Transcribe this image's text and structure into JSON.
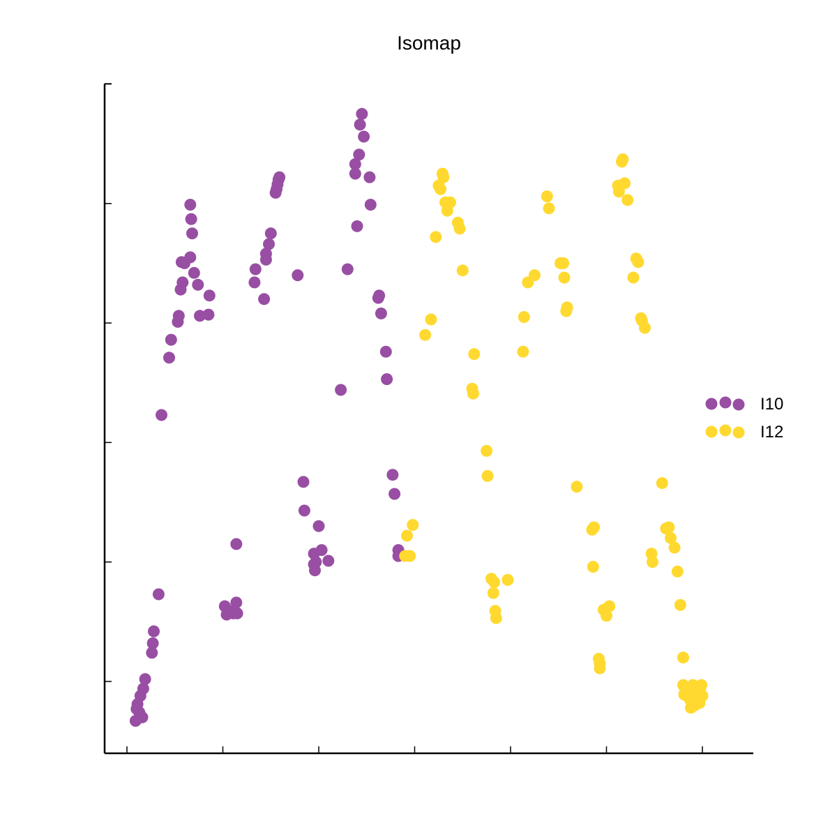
{
  "chart_data": {
    "type": "scatter",
    "title": "Isomap",
    "xlabel": "",
    "ylabel": "",
    "xlim": [
      -0.25,
      6.5
    ],
    "ylim": [
      -0.6,
      5.0
    ],
    "x_ticks": [
      0,
      1,
      2,
      3,
      4,
      5,
      6
    ],
    "y_ticks": [
      0,
      1,
      2,
      3,
      4,
      5
    ],
    "tick_labels_shown": false,
    "grid": false,
    "legend_position": "right",
    "series": [
      {
        "name": "I10",
        "color": "#984ea3",
        "points": [
          [
            0.11,
            -0.19
          ],
          [
            0.09,
            -0.33
          ],
          [
            0.13,
            -0.26
          ],
          [
            0.16,
            -0.3
          ],
          [
            0.1,
            -0.23
          ],
          [
            0.14,
            -0.12
          ],
          [
            0.17,
            -0.06
          ],
          [
            0.19,
            0.02
          ],
          [
            0.26,
            0.24
          ],
          [
            0.27,
            0.32
          ],
          [
            0.28,
            0.42
          ],
          [
            0.33,
            0.73
          ],
          [
            0.36,
            2.23
          ],
          [
            0.44,
            2.71
          ],
          [
            0.46,
            2.86
          ],
          [
            0.53,
            3.01
          ],
          [
            0.54,
            3.06
          ],
          [
            0.57,
            3.51
          ],
          [
            0.56,
            3.28
          ],
          [
            0.58,
            3.34
          ],
          [
            0.6,
            3.5
          ],
          [
            0.66,
            3.55
          ],
          [
            0.66,
            3.99
          ],
          [
            0.67,
            3.87
          ],
          [
            0.68,
            3.75
          ],
          [
            0.7,
            3.42
          ],
          [
            0.74,
            3.32
          ],
          [
            0.76,
            3.06
          ],
          [
            0.85,
            3.07
          ],
          [
            0.86,
            3.23
          ],
          [
            1.02,
            0.63
          ],
          [
            1.04,
            0.56
          ],
          [
            1.06,
            0.59
          ],
          [
            1.11,
            0.57
          ],
          [
            1.14,
            0.66
          ],
          [
            1.15,
            0.57
          ],
          [
            1.14,
            1.15
          ],
          [
            1.33,
            3.34
          ],
          [
            1.34,
            3.45
          ],
          [
            1.43,
            3.2
          ],
          [
            1.45,
            3.53
          ],
          [
            1.45,
            3.58
          ],
          [
            1.48,
            3.66
          ],
          [
            1.5,
            3.75
          ],
          [
            1.55,
            4.09
          ],
          [
            1.56,
            4.12
          ],
          [
            1.57,
            4.16
          ],
          [
            1.58,
            4.2
          ],
          [
            1.59,
            4.22
          ],
          [
            1.78,
            3.4
          ],
          [
            1.84,
            1.67
          ],
          [
            1.85,
            1.43
          ],
          [
            1.95,
            1.07
          ],
          [
            1.95,
            0.98
          ],
          [
            1.96,
            0.93
          ],
          [
            1.97,
            1.0
          ],
          [
            2.0,
            1.3
          ],
          [
            2.03,
            1.1
          ],
          [
            2.1,
            1.01
          ],
          [
            2.23,
            2.44
          ],
          [
            2.3,
            3.45
          ],
          [
            2.38,
            4.33
          ],
          [
            2.38,
            4.25
          ],
          [
            2.4,
            3.81
          ],
          [
            2.42,
            4.41
          ],
          [
            2.43,
            4.66
          ],
          [
            2.45,
            4.75
          ],
          [
            2.47,
            4.56
          ],
          [
            2.53,
            4.22
          ],
          [
            2.54,
            3.99
          ],
          [
            2.62,
            3.21
          ],
          [
            2.63,
            3.23
          ],
          [
            2.65,
            3.08
          ],
          [
            2.7,
            2.76
          ],
          [
            2.71,
            2.53
          ],
          [
            2.77,
            1.73
          ],
          [
            2.79,
            1.57
          ],
          [
            2.83,
            1.05
          ],
          [
            2.83,
            1.1
          ]
        ]
      },
      {
        "name": "I12",
        "color": "#ffd92f",
        "points": [
          [
            2.9,
            1.05
          ],
          [
            2.92,
            1.22
          ],
          [
            2.95,
            1.05
          ],
          [
            2.98,
            1.31
          ],
          [
            3.11,
            2.9
          ],
          [
            3.17,
            3.03
          ],
          [
            3.22,
            3.72
          ],
          [
            3.25,
            4.15
          ],
          [
            3.27,
            4.12
          ],
          [
            3.29,
            4.25
          ],
          [
            3.3,
            4.22
          ],
          [
            3.32,
            4.01
          ],
          [
            3.34,
            3.94
          ],
          [
            3.37,
            4.01
          ],
          [
            3.45,
            3.84
          ],
          [
            3.47,
            3.79
          ],
          [
            3.5,
            3.44
          ],
          [
            3.6,
            2.45
          ],
          [
            3.61,
            2.41
          ],
          [
            3.62,
            2.74
          ],
          [
            3.75,
            1.93
          ],
          [
            3.76,
            1.72
          ],
          [
            3.8,
            0.86
          ],
          [
            3.82,
            0.74
          ],
          [
            3.83,
            0.83
          ],
          [
            3.84,
            0.59
          ],
          [
            3.85,
            0.53
          ],
          [
            3.97,
            0.85
          ],
          [
            4.13,
            2.76
          ],
          [
            4.14,
            3.05
          ],
          [
            4.18,
            3.34
          ],
          [
            4.25,
            3.4
          ],
          [
            4.38,
            4.06
          ],
          [
            4.4,
            3.96
          ],
          [
            4.52,
            3.5
          ],
          [
            4.55,
            3.5
          ],
          [
            4.56,
            3.38
          ],
          [
            4.58,
            3.1
          ],
          [
            4.59,
            3.13
          ],
          [
            4.69,
            1.63
          ],
          [
            4.85,
            1.27
          ],
          [
            4.87,
            1.29
          ],
          [
            4.86,
            0.96
          ],
          [
            4.92,
            0.19
          ],
          [
            4.93,
            0.11
          ],
          [
            4.93,
            0.15
          ],
          [
            4.97,
            0.6
          ],
          [
            5.0,
            0.55
          ],
          [
            5.03,
            0.63
          ],
          [
            5.12,
            4.15
          ],
          [
            5.13,
            4.1
          ],
          [
            5.16,
            4.35
          ],
          [
            5.17,
            4.37
          ],
          [
            5.19,
            4.17
          ],
          [
            5.22,
            4.03
          ],
          [
            5.28,
            3.38
          ],
          [
            5.31,
            3.54
          ],
          [
            5.33,
            3.51
          ],
          [
            5.36,
            3.04
          ],
          [
            5.37,
            3.02
          ],
          [
            5.4,
            2.96
          ],
          [
            5.47,
            1.07
          ],
          [
            5.48,
            1.0
          ],
          [
            5.58,
            1.66
          ],
          [
            5.62,
            1.28
          ],
          [
            5.65,
            1.29
          ],
          [
            5.67,
            1.2
          ],
          [
            5.71,
            1.12
          ],
          [
            5.74,
            0.92
          ],
          [
            5.77,
            0.64
          ],
          [
            5.8,
            0.2
          ],
          [
            5.8,
            -0.03
          ],
          [
            5.81,
            -0.11
          ],
          [
            5.82,
            -0.08
          ],
          [
            5.84,
            -0.12
          ],
          [
            5.86,
            -0.07
          ],
          [
            5.87,
            -0.15
          ],
          [
            5.88,
            -0.22
          ],
          [
            5.9,
            -0.03
          ],
          [
            5.91,
            -0.1
          ],
          [
            5.92,
            -0.2
          ],
          [
            5.93,
            -0.05
          ],
          [
            5.94,
            -0.07
          ],
          [
            5.96,
            -0.09
          ],
          [
            5.97,
            -0.18
          ],
          [
            5.98,
            -0.05
          ],
          [
            5.99,
            -0.03
          ],
          [
            6.0,
            -0.12
          ],
          [
            5.93,
            -0.16
          ]
        ]
      }
    ]
  }
}
